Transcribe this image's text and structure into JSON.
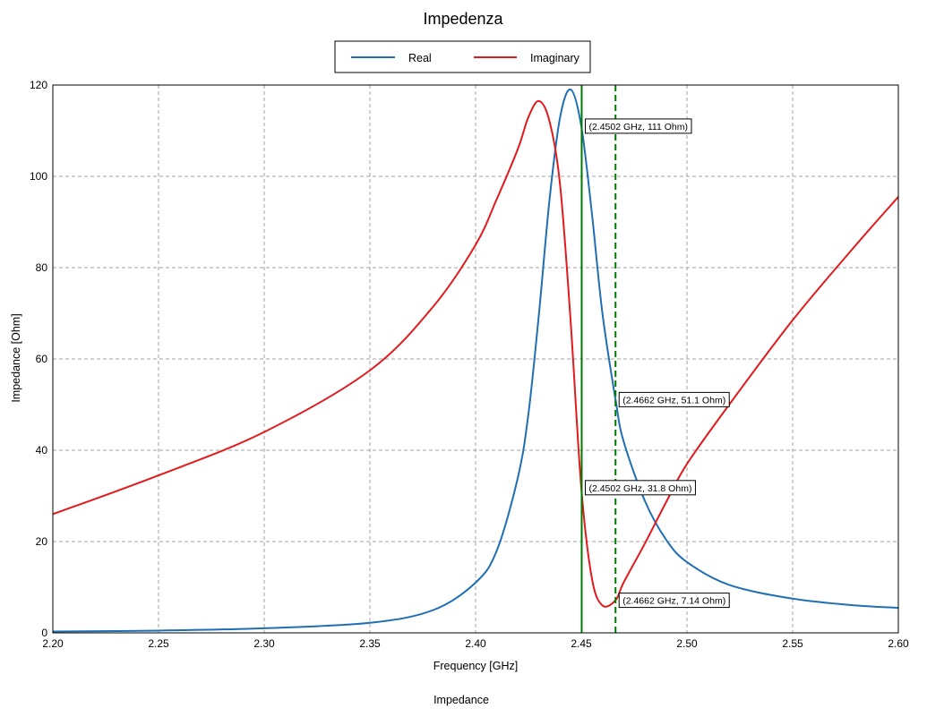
{
  "chart_data": {
    "type": "line",
    "title": "Impedenza",
    "xlabel": "Frequency [GHz]",
    "ylabel": "Impedance [Ohm]",
    "xlim": [
      2.2,
      2.6
    ],
    "ylim": [
      0,
      120
    ],
    "xticks": [
      2.2,
      2.25,
      2.3,
      2.35,
      2.4,
      2.45,
      2.5,
      2.55,
      2.6
    ],
    "xtick_labels": [
      "2.20",
      "2.25",
      "2.30",
      "2.35",
      "2.40",
      "2.45",
      "2.50",
      "2.55",
      "2.60"
    ],
    "yticks": [
      0,
      20,
      40,
      60,
      80,
      100,
      120
    ],
    "ytick_labels": [
      "0",
      "20",
      "40",
      "60",
      "80",
      "100",
      "120"
    ],
    "grid": true,
    "legend_position": "top-center",
    "series": [
      {
        "name": "Real",
        "color": "#1f6fb4",
        "x": [
          2.2,
          2.25,
          2.3,
          2.35,
          2.38,
          2.4,
          2.41,
          2.42,
          2.425,
          2.43,
          2.435,
          2.44,
          2.445,
          2.45,
          2.455,
          2.46,
          2.4662,
          2.47,
          2.48,
          2.49,
          2.5,
          2.52,
          2.55,
          2.58,
          2.6
        ],
        "y": [
          0.3,
          0.5,
          1.0,
          2.2,
          5.0,
          11.0,
          18.0,
          34.0,
          48.0,
          70.0,
          95.0,
          113.0,
          119.0,
          111.0,
          92.0,
          70.0,
          51.1,
          42.0,
          29.0,
          20.5,
          15.5,
          10.5,
          7.5,
          6.0,
          5.5
        ]
      },
      {
        "name": "Imaginary",
        "color": "#e31a1c",
        "x": [
          2.2,
          2.25,
          2.3,
          2.35,
          2.38,
          2.4,
          2.41,
          2.42,
          2.425,
          2.43,
          2.435,
          2.44,
          2.445,
          2.45,
          2.455,
          2.46,
          2.4662,
          2.47,
          2.48,
          2.49,
          2.5,
          2.52,
          2.55,
          2.58,
          2.6
        ],
        "y": [
          26.0,
          34.5,
          44.0,
          57.5,
          71.5,
          85.0,
          95.0,
          106.0,
          113.0,
          116.5,
          112.0,
          98.0,
          68.0,
          31.8,
          12.0,
          6.0,
          7.14,
          11.0,
          19.5,
          28.5,
          37.0,
          50.0,
          68.5,
          85.0,
          95.5
        ]
      }
    ],
    "markers": [
      {
        "x": 2.4502,
        "color": "#007a00",
        "style": "solid"
      },
      {
        "x": 2.4662,
        "color": "#007a00",
        "style": "dashed"
      }
    ],
    "annotations": [
      {
        "text": "(2.4502 GHz, 111 Ohm)",
        "x": 2.4502,
        "y": 111
      },
      {
        "text": "(2.4502 GHz, 31.8 Ohm)",
        "x": 2.4502,
        "y": 31.8
      },
      {
        "text": "(2.4662 GHz, 51.1 Ohm)",
        "x": 2.4662,
        "y": 51.1
      },
      {
        "text": "(2.4662 GHz, 7.14 Ohm)",
        "x": 2.4662,
        "y": 7.14
      }
    ]
  },
  "footer_label": "Impedance"
}
